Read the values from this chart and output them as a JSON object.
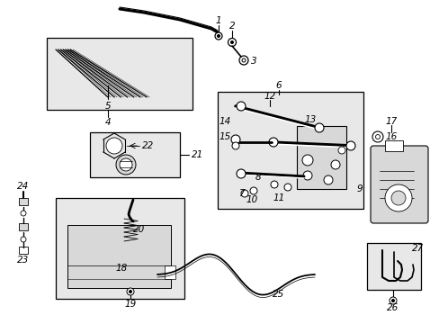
{
  "bg_color": "#ffffff",
  "fig_width": 4.89,
  "fig_height": 3.6,
  "dpi": 100,
  "line_color": "#000000",
  "gray_fill": "#d8d8d8",
  "light_fill": "#e8e8e8"
}
